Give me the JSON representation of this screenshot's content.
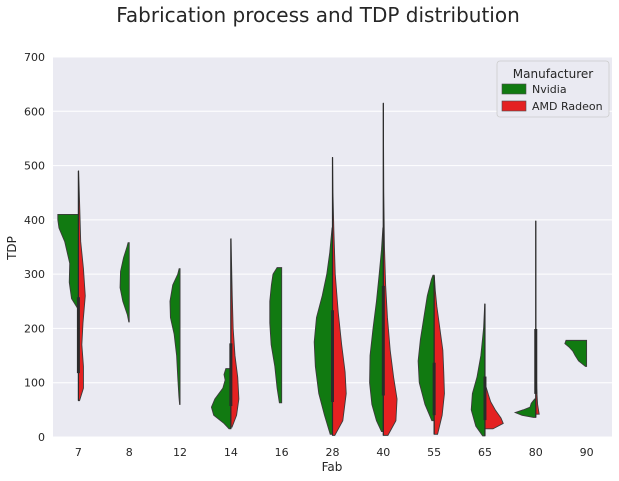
{
  "chart_data": {
    "type": "violin",
    "title": "Fabrication process and TDP distribution",
    "xlabel": "Fab",
    "ylabel": "TDP",
    "ylim": [
      0,
      700
    ],
    "yticks": [
      0,
      100,
      200,
      300,
      400,
      500,
      600,
      700
    ],
    "categories": [
      "7",
      "8",
      "12",
      "14",
      "16",
      "28",
      "40",
      "55",
      "65",
      "80",
      "90"
    ],
    "split": true,
    "grid": true,
    "legend": {
      "title": "Manufacturer",
      "placement": "top-right",
      "entries": [
        "Nvidia",
        "AMD Radeon"
      ]
    },
    "colors": {
      "Nvidia": "#117a11",
      "AMD Radeon": "#e42121",
      "background": "#eaeaf2",
      "grid": "#ffffff"
    },
    "series": [
      {
        "name": "Nvidia",
        "violins": [
          {
            "category": "7",
            "min": 238,
            "max": 410,
            "profile": [
              [
                238,
                0.05
              ],
              [
                255,
                0.3
              ],
              [
                285,
                0.4
              ],
              [
                320,
                0.38
              ],
              [
                360,
                0.6
              ],
              [
                385,
                0.85
              ],
              [
                400,
                0.9
              ],
              [
                410,
                0.9
              ]
            ]
          },
          {
            "category": "8",
            "min": 212,
            "max": 358,
            "profile": [
              [
                212,
                0.02
              ],
              [
                225,
                0.08
              ],
              [
                250,
                0.28
              ],
              [
                275,
                0.4
              ],
              [
                305,
                0.38
              ],
              [
                330,
                0.25
              ],
              [
                350,
                0.1
              ],
              [
                358,
                0.05
              ]
            ]
          },
          {
            "category": "12",
            "min": 60,
            "max": 310,
            "profile": [
              [
                60,
                0.02
              ],
              [
                75,
                0.05
              ],
              [
                110,
                0.1
              ],
              [
                150,
                0.15
              ],
              [
                190,
                0.26
              ],
              [
                220,
                0.42
              ],
              [
                250,
                0.44
              ],
              [
                280,
                0.32
              ],
              [
                300,
                0.1
              ],
              [
                310,
                0.04
              ]
            ]
          },
          {
            "category": "14",
            "min": 15,
            "max": 126,
            "profile": [
              [
                15,
                0.08
              ],
              [
                25,
                0.3
              ],
              [
                40,
                0.75
              ],
              [
                55,
                0.85
              ],
              [
                70,
                0.7
              ],
              [
                90,
                0.35
              ],
              [
                105,
                0.25
              ],
              [
                115,
                0.3
              ],
              [
                126,
                0.22
              ]
            ]
          },
          {
            "category": "16",
            "min": 63,
            "max": 312,
            "profile": [
              [
                63,
                0.1
              ],
              [
                90,
                0.2
              ],
              [
                130,
                0.3
              ],
              [
                170,
                0.46
              ],
              [
                210,
                0.52
              ],
              [
                250,
                0.52
              ],
              [
                280,
                0.45
              ],
              [
                300,
                0.38
              ],
              [
                312,
                0.2
              ]
            ]
          },
          {
            "category": "28",
            "min": 5,
            "max": 385,
            "profile": [
              [
                5,
                0.1
              ],
              [
                40,
                0.35
              ],
              [
                80,
                0.6
              ],
              [
                130,
                0.75
              ],
              [
                175,
                0.8
              ],
              [
                220,
                0.7
              ],
              [
                260,
                0.45
              ],
              [
                300,
                0.25
              ],
              [
                340,
                0.12
              ],
              [
                385,
                0.02
              ]
            ]
          },
          {
            "category": "40",
            "min": 10,
            "max": 385,
            "profile": [
              [
                10,
                0.08
              ],
              [
                30,
                0.3
              ],
              [
                60,
                0.5
              ],
              [
                100,
                0.6
              ],
              [
                150,
                0.58
              ],
              [
                200,
                0.45
              ],
              [
                250,
                0.3
              ],
              [
                300,
                0.18
              ],
              [
                345,
                0.08
              ],
              [
                385,
                0.02
              ]
            ]
          },
          {
            "category": "55",
            "min": 30,
            "max": 298,
            "profile": [
              [
                30,
                0.1
              ],
              [
                60,
                0.4
              ],
              [
                100,
                0.65
              ],
              [
                140,
                0.7
              ],
              [
                180,
                0.6
              ],
              [
                220,
                0.45
              ],
              [
                260,
                0.3
              ],
              [
                290,
                0.12
              ],
              [
                298,
                0.05
              ]
            ]
          },
          {
            "category": "65",
            "min": 2,
            "max": 245,
            "profile": [
              [
                2,
                0.1
              ],
              [
                20,
                0.4
              ],
              [
                50,
                0.6
              ],
              [
                80,
                0.55
              ],
              [
                110,
                0.35
              ],
              [
                150,
                0.18
              ],
              [
                200,
                0.06
              ],
              [
                245,
                0.01
              ]
            ]
          },
          {
            "category": "80",
            "min": 36,
            "max": 70,
            "profile": [
              [
                36,
                0.1
              ],
              [
                40,
                0.6
              ],
              [
                45,
                0.9
              ],
              [
                50,
                0.55
              ],
              [
                55,
                0.25
              ],
              [
                62,
                0.2
              ],
              [
                70,
                0.05
              ]
            ]
          },
          {
            "category": "90",
            "min": 130,
            "max": 178,
            "profile": [
              [
                130,
                0.05
              ],
              [
                140,
                0.35
              ],
              [
                150,
                0.5
              ],
              [
                158,
                0.6
              ],
              [
                165,
                0.75
              ],
              [
                172,
                0.95
              ],
              [
                178,
                0.9
              ]
            ]
          }
        ]
      },
      {
        "name": "AMD Radeon",
        "violins": [
          {
            "category": "7",
            "min": 67,
            "max": 490,
            "profile": [
              [
                67,
                0.05
              ],
              [
                90,
                0.22
              ],
              [
                130,
                0.22
              ],
              [
                170,
                0.15
              ],
              [
                210,
                0.2
              ],
              [
                260,
                0.3
              ],
              [
                310,
                0.22
              ],
              [
                360,
                0.1
              ],
              [
                420,
                0.06
              ],
              [
                490,
                0.01
              ]
            ]
          },
          {
            "category": "14",
            "min": 18,
            "max": 365,
            "profile": [
              [
                18,
                0.05
              ],
              [
                40,
                0.25
              ],
              [
                70,
                0.35
              ],
              [
                110,
                0.3
              ],
              [
                150,
                0.18
              ],
              [
                200,
                0.1
              ],
              [
                260,
                0.06
              ],
              [
                320,
                0.03
              ],
              [
                365,
                0.01
              ]
            ]
          },
          {
            "category": "28",
            "min": 3,
            "max": 515,
            "profile": [
              [
                3,
                0.1
              ],
              [
                30,
                0.45
              ],
              [
                80,
                0.6
              ],
              [
                120,
                0.55
              ],
              [
                170,
                0.4
              ],
              [
                230,
                0.25
              ],
              [
                300,
                0.12
              ],
              [
                380,
                0.06
              ],
              [
                450,
                0.02
              ],
              [
                515,
                0.005
              ]
            ]
          },
          {
            "category": "40",
            "min": 3,
            "max": 615,
            "profile": [
              [
                3,
                0.2
              ],
              [
                30,
                0.55
              ],
              [
                70,
                0.6
              ],
              [
                110,
                0.45
              ],
              [
                160,
                0.3
              ],
              [
                220,
                0.18
              ],
              [
                280,
                0.1
              ],
              [
                350,
                0.05
              ],
              [
                450,
                0.02
              ],
              [
                540,
                0.01
              ],
              [
                615,
                0.003
              ]
            ]
          },
          {
            "category": "55",
            "min": 5,
            "max": 295,
            "profile": [
              [
                5,
                0.15
              ],
              [
                40,
                0.35
              ],
              [
                80,
                0.45
              ],
              [
                120,
                0.42
              ],
              [
                160,
                0.38
              ],
              [
                200,
                0.25
              ],
              [
                240,
                0.12
              ],
              [
                270,
                0.05
              ],
              [
                295,
                0.01
              ]
            ]
          },
          {
            "category": "65",
            "min": 15,
            "max": 92,
            "profile": [
              [
                15,
                0.35
              ],
              [
                25,
                0.8
              ],
              [
                35,
                0.7
              ],
              [
                50,
                0.45
              ],
              [
                65,
                0.25
              ],
              [
                78,
                0.15
              ],
              [
                92,
                0.05
              ]
            ]
          },
          {
            "category": "80",
            "min": 42,
            "max": 398,
            "profile": [
              [
                42,
                0.15
              ],
              [
                60,
                0.08
              ],
              [
                90,
                0.04
              ],
              [
                130,
                0.02
              ],
              [
                200,
                0.01
              ],
              [
                300,
                0.005
              ],
              [
                398,
                0.002
              ]
            ]
          }
        ]
      }
    ]
  }
}
